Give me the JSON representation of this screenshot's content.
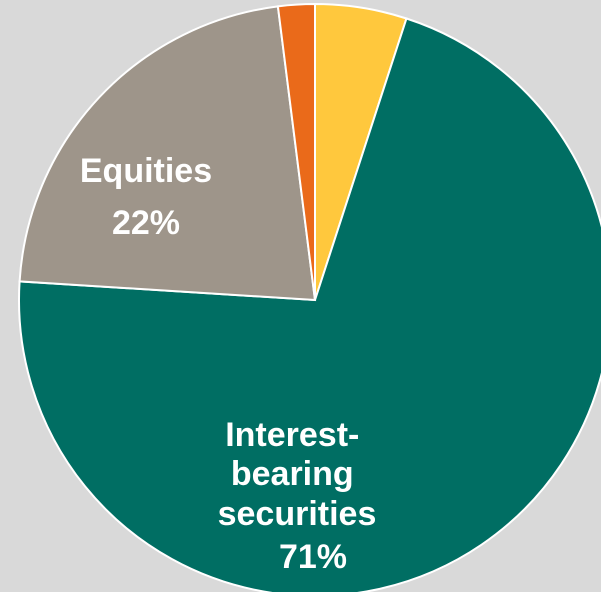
{
  "chart_data": {
    "type": "pie",
    "title": "",
    "slices": [
      {
        "label": "",
        "value": 5,
        "color": "#FFC83D"
      },
      {
        "label": "Interest-bearing securities",
        "value_label": "71%",
        "value": 71,
        "color": "#006E63"
      },
      {
        "label": "Equities",
        "value_label": "22%",
        "value": 22,
        "color": "#9E958A"
      },
      {
        "label": "",
        "value": 2,
        "color": "#EA6A1A"
      }
    ],
    "start_angle_deg": 0,
    "direction": "clockwise",
    "slice_border_color": "#ffffff"
  }
}
